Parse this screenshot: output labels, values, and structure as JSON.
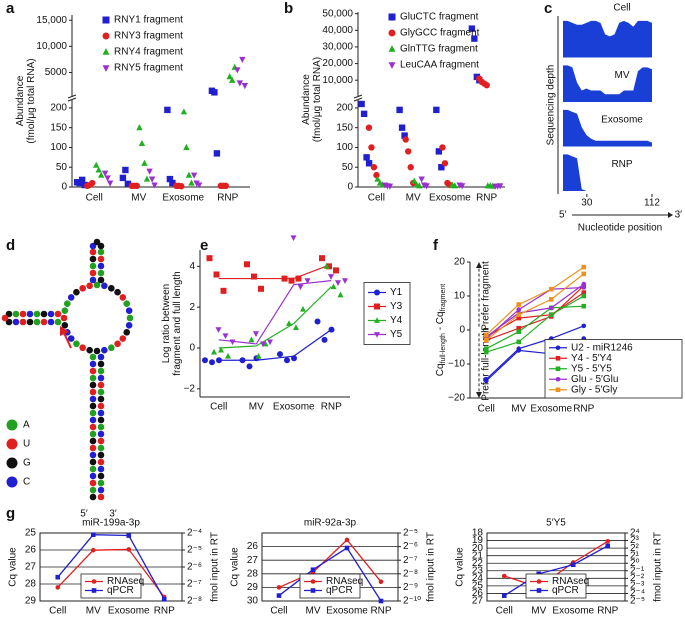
{
  "chart_data": [
    {
      "panel": "a",
      "type": "dot",
      "ylabel": [
        "Abundance",
        "(fmol/μg total RNA)"
      ],
      "categories": [
        "Cell",
        "MV",
        "Exosome",
        "RNP"
      ],
      "ysegments": [
        {
          "ylim": [
            0,
            220
          ],
          "yticks": [
            0,
            50,
            100,
            150,
            200
          ]
        },
        {
          "ylim": [
            500,
            16000
          ],
          "yticks": [
            5000,
            {
              "value": 10000,
              "label": "10,000"
            },
            {
              "value": 15000,
              "label": "15,000"
            }
          ]
        }
      ],
      "legend": "upper left",
      "series": [
        {
          "name": "RNY1 fragment",
          "color": "#2020d0",
          "marker": "square",
          "values": [
            [
              12,
              10,
              18,
              5
            ],
            [
              23,
              43,
              8
            ],
            [
              195,
              20,
              10
            ],
            [
              1500,
              1200,
              85
            ]
          ]
        },
        {
          "name": "RNY3 fragment",
          "color": "#e02020",
          "marker": "circle",
          "values": [
            [
              3,
              5,
              10
            ],
            [
              3,
              3,
              3
            ],
            [
              3,
              3,
              2
            ],
            [
              3,
              3,
              3
            ]
          ]
        },
        {
          "name": "RNY4 fragment",
          "color": "#22b022",
          "marker": "triangle",
          "values": [
            [
              55,
              43,
              30
            ],
            [
              150,
              110,
              60,
              20
            ],
            [
              190,
              100,
              30,
              10
            ],
            [
              4200,
              3500,
              6000
            ]
          ]
        },
        {
          "name": "RNY5 fragment",
          "color": "#9b30d0",
          "marker": "triangle-down",
          "values": [
            [
              35,
              23,
              10
            ],
            [
              40,
              20,
              5
            ],
            [
              30,
              10,
              5
            ],
            [
              5500,
              3000,
              7500,
              2500
            ]
          ]
        }
      ]
    },
    {
      "panel": "b",
      "type": "dot",
      "ylabel": [
        "Abundance",
        "(fmol/μg total RNA)"
      ],
      "categories": [
        "Cell",
        "MV",
        "Exosome",
        "RNP"
      ],
      "ysegments": [
        {
          "ylim": [
            0,
            220
          ],
          "yticks": [
            0,
            50,
            100,
            150,
            200
          ]
        },
        {
          "ylim": [
            500,
            51000
          ],
          "yticks": [
            {
              "value": 10000,
              "label": "10,000"
            },
            {
              "value": 20000,
              "label": "20,000"
            },
            {
              "value": 30000,
              "label": "30,000"
            },
            {
              "value": 40000,
              "label": "40,000"
            },
            {
              "value": 50000,
              "label": "50,000"
            }
          ]
        }
      ],
      "legend": "upper left",
      "series": [
        {
          "name": "GluCTC fragment",
          "color": "#2020d0",
          "marker": "square",
          "values": [
            [
              210,
              185,
              75,
              60
            ],
            [
              195,
              150,
              130
            ],
            [
              195,
              90,
              50
            ],
            [
              41000,
              35000,
              12000,
              10000
            ]
          ]
        },
        {
          "name": "GlyGCC fragment",
          "color": "#e02020",
          "marker": "circle",
          "values": [
            [
              150,
              100,
              50,
              30
            ],
            [
              120,
              90,
              50,
              10
            ],
            [
              100,
              60,
              10,
              5
            ],
            [
              11000,
              9000,
              8000,
              7000
            ]
          ]
        },
        {
          "name": "GlnTTG fragment",
          "color": "#22b022",
          "marker": "triangle",
          "values": [
            [
              20,
              10,
              5
            ],
            [
              15,
              5,
              3
            ],
            [
              5,
              3
            ],
            [
              3,
              3,
              2
            ]
          ]
        },
        {
          "name": "LeuCAA fragment",
          "color": "#9b30d0",
          "marker": "triangle-down",
          "values": [
            [
              5,
              3,
              2
            ],
            [
              20,
              5,
              3
            ],
            [
              5,
              3
            ],
            [
              2,
              2,
              3
            ]
          ]
        }
      ]
    },
    {
      "panel": "c",
      "type": "coverage",
      "tracks": [
        "Cell",
        "MV",
        "Exosome",
        "RNP"
      ],
      "ylabel": "Sequencing depth",
      "xlabel": "Nucleotide position",
      "xlim": [
        0,
        112
      ],
      "xticks": [
        30,
        112
      ],
      "ends": [
        "5′",
        "3′"
      ]
    },
    {
      "panel": "d",
      "type": "structure",
      "legend": [
        {
          "label": "A",
          "color": "#22a022"
        },
        {
          "label": "U",
          "color": "#e02020"
        },
        {
          "label": "G",
          "color": "#111111"
        },
        {
          "label": "C",
          "color": "#2020d0"
        }
      ],
      "ends": [
        "5′",
        "3′"
      ]
    },
    {
      "panel": "e",
      "type": "dotline",
      "ylabel": [
        "Log ratio between",
        "fragment and full length"
      ],
      "categories": [
        "Cell",
        "MV",
        "Exosome",
        "RNP"
      ],
      "ylim": [
        -2.4,
        4.8
      ],
      "yticks": [
        {
          "value": -2,
          "label": "−2"
        },
        0,
        2,
        4
      ],
      "legend": "right",
      "series": [
        {
          "name": "Y1",
          "color": "#2020d0",
          "marker": "circle",
          "values": [
            [
              -0.6,
              -0.7,
              -0.6
            ],
            [
              -0.6,
              -0.9,
              -0.5
            ],
            [
              -0.3,
              -0.6,
              -0.5
            ],
            [
              1.3,
              0.4,
              0.9
            ]
          ],
          "trend": [
            -0.6,
            -0.6,
            -0.4,
            0.9
          ]
        },
        {
          "name": "Y3",
          "color": "#e02020",
          "marker": "square",
          "values": [
            [
              4.4,
              3.6,
              2.8
            ],
            [
              4.1,
              3.5,
              2.9
            ],
            [
              3.4,
              3.3,
              3.4
            ],
            [
              4.4,
              4.0,
              3.8
            ]
          ],
          "trend": [
            3.4,
            3.4,
            3.4,
            4.1
          ]
        },
        {
          "name": "Y4",
          "color": "#22b022",
          "marker": "triangle",
          "values": [
            [
              -0.2,
              -0.1,
              -0.4
            ],
            [
              0.4,
              -0.4,
              0.2
            ],
            [
              1.2,
              1.0,
              1.9
            ],
            [
              4.0,
              3.0,
              2.6
            ]
          ],
          "trend": [
            0,
            0.1,
            1.2,
            3.0
          ]
        },
        {
          "name": "Y5",
          "color": "#9b30d0",
          "marker": "triangle-down",
          "values": [
            [
              0.9,
              0.6,
              0.3
            ],
            [
              0.7,
              0.2,
              0.3
            ],
            [
              5.4,
              3.0,
              3.3
            ],
            [
              3.5,
              3.2,
              3.3
            ]
          ],
          "trend": [
            0.4,
            0.2,
            3.1,
            3.3
          ]
        }
      ]
    },
    {
      "panel": "f",
      "type": "line",
      "ylabel": [
        "Cq",
        "full-length",
        " - Cq",
        "fragment"
      ],
      "categories": [
        "Cell",
        "MV",
        "Exosome",
        "RNP"
      ],
      "ylim": [
        -20,
        20
      ],
      "yticks": [
        {
          "value": -20,
          "label": "−20"
        },
        {
          "value": -10,
          "label": "−10"
        },
        0,
        10,
        20
      ],
      "annotations": [
        "Prefer fragment",
        "Prefer full-length"
      ],
      "legend": "lower right",
      "series": [
        {
          "name": "U2 - miR1246",
          "color": "#2020d0",
          "marker": "circle",
          "values": [
            [
              -14.5,
              -5.5,
              -2.5,
              1.2
            ],
            [
              -15,
              -6,
              -7,
              -2.5
            ]
          ]
        },
        {
          "name": "Y4 - 5′Y4",
          "color": "#e02020",
          "marker": "square",
          "values": [
            [
              -2,
              3.5,
              4.5,
              11
            ],
            [
              -3,
              0.5,
              4,
              13
            ]
          ]
        },
        {
          "name": "Y5 - 5′Y5",
          "color": "#22b022",
          "marker": "square",
          "values": [
            [
              -5.5,
              -0.5,
              6.5,
              7
            ],
            [
              -6.5,
              -3.5,
              4.5,
              10
            ]
          ]
        },
        {
          "name": "Glu - 5′Glu",
          "color": "#9b30d0",
          "marker": "circle",
          "values": [
            [
              -2.5,
              6,
              12,
              12.5
            ],
            [
              -2,
              5,
              6.5,
              13.5
            ]
          ]
        },
        {
          "name": "Gly - 5′Gly",
          "color": "#f0901c",
          "marker": "square",
          "values": [
            [
              -1.5,
              7.5,
              12,
              18.5
            ],
            [
              -3,
              4.5,
              9,
              16.5
            ]
          ]
        }
      ]
    },
    {
      "panel": "g",
      "type": "dual",
      "title": "miR-199a-3p",
      "categories": [
        "Cell",
        "MV",
        "Exosome",
        "RNP"
      ],
      "ylabel": "Cq value",
      "y2label": "fmol input in RT",
      "ylim": [
        29,
        25
      ],
      "yticks": [
        25,
        26,
        27,
        28,
        29
      ],
      "y2log": 2,
      "y2lim": [
        0.00390625,
        0.0625
      ],
      "y2ticks": [
        {
          "value": 0.0625,
          "label": "2⁻⁴"
        },
        {
          "value": 0.03125,
          "label": "2⁻⁵"
        },
        {
          "value": 0.015625,
          "label": "2⁻⁶"
        },
        {
          "value": 0.0078125,
          "label": "2⁻⁷"
        },
        {
          "value": 0.00390625,
          "label": "2⁻⁸"
        }
      ],
      "grid": true,
      "legend": "lower center",
      "series": [
        {
          "name": "RNAseq",
          "color": "#e02020",
          "marker": "circle",
          "axis": "y2",
          "values": [
            0.0068,
            0.031,
            0.032,
            0.0046
          ]
        },
        {
          "name": "qPCR",
          "color": "#2020d0",
          "marker": "square",
          "values": [
            27.6,
            25.1,
            25.15,
            28.9
          ]
        }
      ]
    },
    {
      "type": "dual",
      "title": "miR-92a-3p",
      "categories": [
        "Cell",
        "MV",
        "Exosome",
        "RNP"
      ],
      "ylabel": "Cq value",
      "y2label": "fmol input in RT",
      "ylim": [
        30,
        25
      ],
      "yticks": [
        26,
        27,
        28,
        29,
        30
      ],
      "y2log": 2,
      "y2lim": [
        0.0009765625,
        0.03125
      ],
      "y2ticks": [
        {
          "value": 0.03125,
          "label": "2⁻⁵"
        },
        {
          "value": 0.015625,
          "label": "2⁻⁶"
        },
        {
          "value": 0.0078125,
          "label": "2⁻⁷"
        },
        {
          "value": 0.00390625,
          "label": "2⁻⁸"
        },
        {
          "value": 0.001953125,
          "label": "2⁻⁹"
        },
        {
          "value": 0.0009765625,
          "label": "2⁻¹⁰"
        }
      ],
      "grid": true,
      "legend": "lower center",
      "series": [
        {
          "name": "RNAseq",
          "color": "#e02020",
          "marker": "circle",
          "axis": "y2",
          "values": [
            0.00195,
            0.0042,
            0.022,
            0.0026
          ]
        },
        {
          "name": "qPCR",
          "color": "#2020d0",
          "marker": "square",
          "values": [
            29.6,
            27.7,
            26.1,
            30
          ]
        }
      ]
    },
    {
      "type": "dual",
      "title": "5′Y5",
      "categories": [
        "Cell",
        "MV",
        "Exosome",
        "RNP"
      ],
      "ylabel": "Cq value",
      "y2label": "fmol input in RT",
      "ylim": [
        27,
        18
      ],
      "yticks": [
        18,
        19,
        20,
        21,
        22,
        23,
        24,
        25,
        26,
        27
      ],
      "y2log": 2,
      "y2lim": [
        0.03125,
        16
      ],
      "y2ticks": [
        {
          "value": 16,
          "label": "2⁴"
        },
        {
          "value": 8,
          "label": "2³"
        },
        {
          "value": 4,
          "label": "2²"
        },
        {
          "value": 2,
          "label": "2¹"
        },
        {
          "value": 1,
          "label": "2⁰"
        },
        {
          "value": 0.5,
          "label": "2⁻¹"
        },
        {
          "value": 0.25,
          "label": "2⁻²"
        },
        {
          "value": 0.125,
          "label": "2⁻³"
        },
        {
          "value": 0.0625,
          "label": "2⁻⁴"
        },
        {
          "value": 0.03125,
          "label": "2⁻⁵"
        }
      ],
      "grid": true,
      "legend": "lower center",
      "series": [
        {
          "name": "RNAseq",
          "color": "#e02020",
          "marker": "circle",
          "axis": "y2",
          "values": [
            0.31,
            0.11,
            1.07,
            7.5
          ]
        },
        {
          "name": "qPCR",
          "color": "#2020d0",
          "marker": "square",
          "values": [
            26.3,
            23.4,
            22.2,
            19.7
          ]
        }
      ]
    }
  ]
}
